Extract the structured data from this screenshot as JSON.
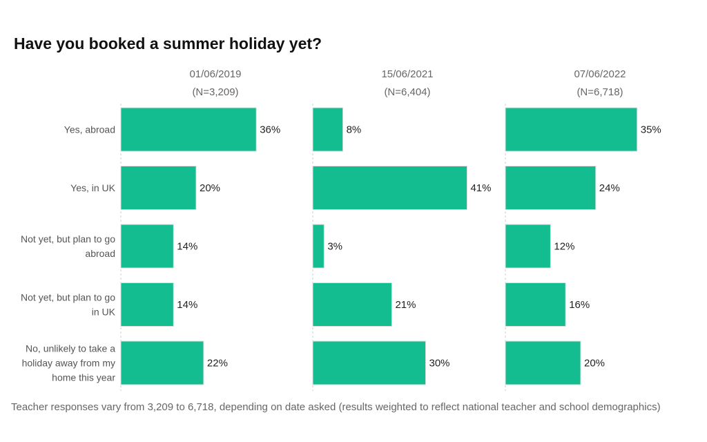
{
  "chart_data": {
    "type": "bar",
    "orientation": "horizontal",
    "title": "Have you booked a summer holiday yet?",
    "categories": [
      "Yes, abroad",
      "Yes, in UK",
      "Not yet, but plan to go abroad",
      "Not yet, but plan to go in UK",
      "No, unlikely to take a holiday away from my home this year"
    ],
    "category_lines": [
      [
        "Yes, abroad"
      ],
      [
        "Yes, in UK"
      ],
      [
        "Not yet, but plan to go",
        "abroad"
      ],
      [
        "Not yet, but plan to go",
        "in UK"
      ],
      [
        "No, unlikely to take a",
        "holiday away from my",
        "home this year"
      ]
    ],
    "series": [
      {
        "name": "01/06/2019",
        "n_label": "(N=3,209)",
        "values": [
          36,
          20,
          14,
          14,
          22
        ],
        "labels": [
          "36%",
          "20%",
          "14%",
          "14%",
          "22%"
        ]
      },
      {
        "name": "15/06/2021",
        "n_label": "(N=6,404)",
        "values": [
          8,
          41,
          3,
          21,
          30
        ],
        "labels": [
          "8%",
          "41%",
          "3%",
          "21%",
          "30%"
        ]
      },
      {
        "name": "07/06/2022",
        "n_label": "(N=6,718)",
        "values": [
          35,
          24,
          12,
          16,
          20
        ],
        "labels": [
          "35%",
          "24%",
          "12%",
          "16%",
          "20%"
        ]
      }
    ],
    "unit": "%",
    "bar_color": "#13bd8f",
    "footnote": "Teacher responses vary from 3,209 to 6,718, depending on date asked (results weighted to reflect national teacher and school demographics)"
  }
}
